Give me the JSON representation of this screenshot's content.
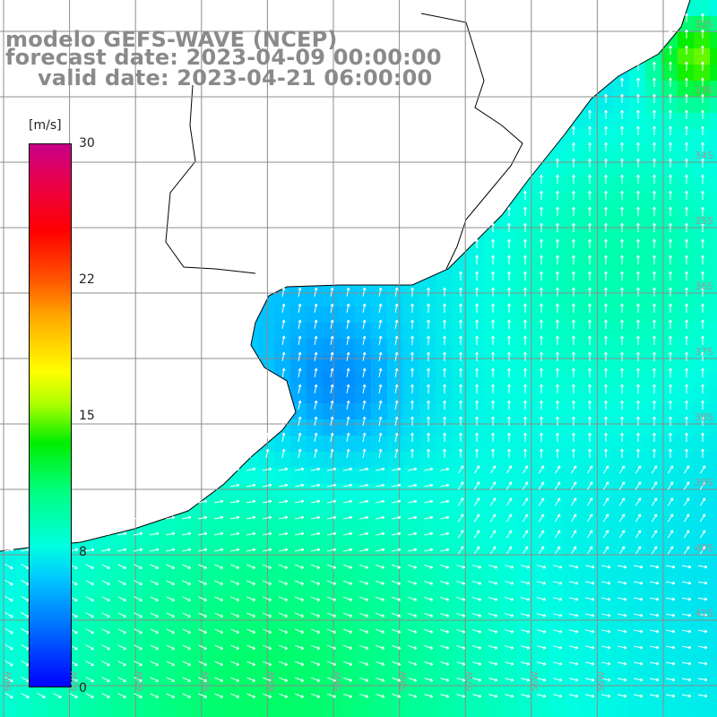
{
  "title": {
    "line1": "modelo GEFS-WAVE (NCEP)",
    "line2": "forecast date: 2023-04-09 00:00:00",
    "line3": "valid date: 2023-04-21 06:00:00"
  },
  "colorbar": {
    "unit": "[m/s]",
    "ticks": [
      "30",
      "22",
      "15",
      "8",
      "0"
    ],
    "tick_values": [
      30,
      22,
      15,
      8,
      0
    ],
    "range": [
      0,
      30
    ],
    "colors": [
      "#0000ff",
      "#00c8ff",
      "#00ffe0",
      "#00ee00",
      "#ffff00",
      "#ff0000",
      "#c8008a"
    ]
  },
  "map": {
    "latitude_labels": [
      "32S",
      "33S",
      "34S",
      "35S",
      "36S",
      "37S",
      "38S",
      "39S",
      "40S",
      "41S"
    ],
    "longitude_labels": [
      "64W",
      "63W",
      "62W",
      "61W",
      "60W",
      "59W",
      "58W",
      "57W",
      "56W",
      "55W"
    ],
    "land_color": "#ffffff",
    "coast_color": "#000000",
    "grid_color": "#8c8c8c",
    "arrow_color": "#ffffff"
  }
}
